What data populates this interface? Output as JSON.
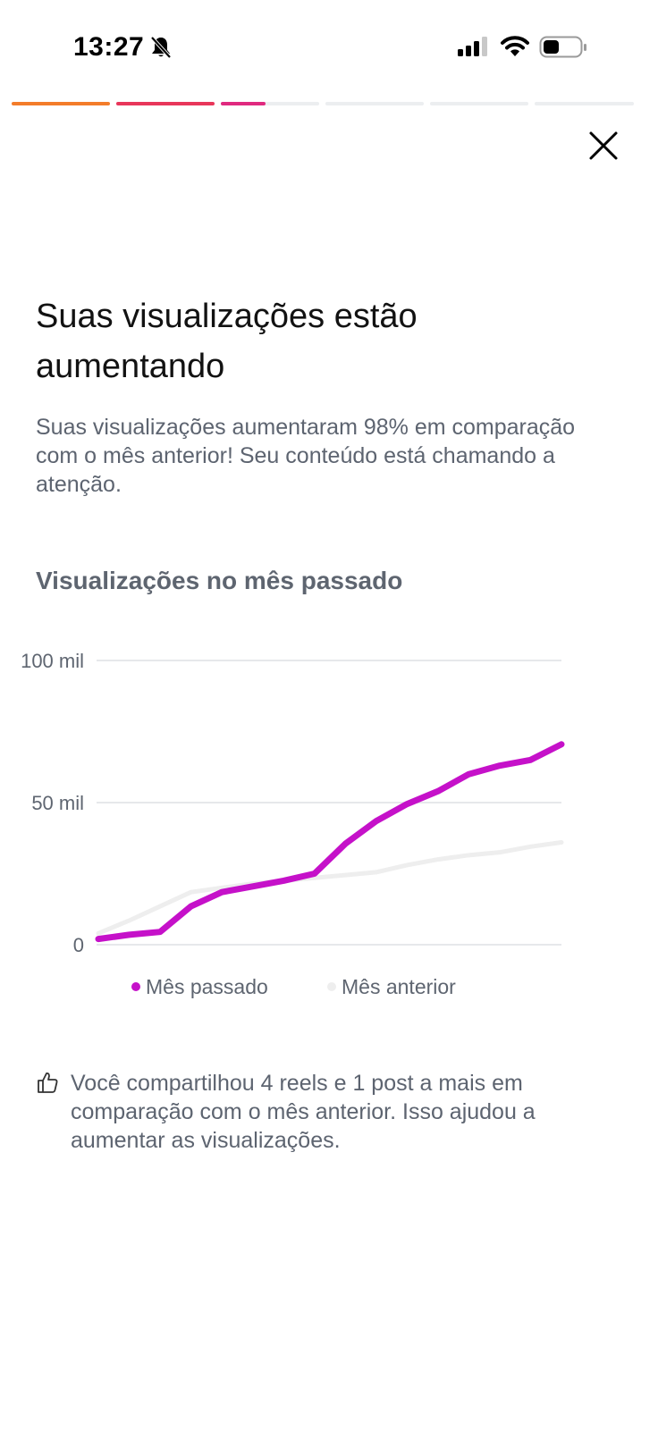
{
  "status_bar": {
    "time": "13:27",
    "icons": [
      "bell-slash-icon",
      "signal-icon",
      "wifi-icon",
      "battery-icon"
    ]
  },
  "story_progress": {
    "segments": [
      {
        "state": "complete",
        "color": "#f37c2a"
      },
      {
        "state": "complete",
        "color": "#e8365a"
      },
      {
        "state": "current",
        "fill_fraction": 0.45,
        "color": "#e0297f"
      },
      {
        "state": "upcoming"
      },
      {
        "state": "upcoming"
      },
      {
        "state": "upcoming"
      }
    ]
  },
  "close_icon": "close-icon",
  "title": "Suas visualizações estão aumentando",
  "subtitle": "Suas visualizações aumentaram 98% em comparação com o mês anterior! Seu conteúdo está chamando a atenção.",
  "chart_title": "Visualizações no mês passado",
  "chart_data": {
    "type": "line",
    "title": "Visualizações no mês passado",
    "ylim": [
      0,
      100000
    ],
    "y_ticks": [
      {
        "value": 0,
        "label": "0"
      },
      {
        "value": 50000,
        "label": "50 mil"
      },
      {
        "value": 100000,
        "label": "100 mil"
      }
    ],
    "grid": true,
    "x": [
      1,
      2,
      3,
      4,
      5,
      6,
      7,
      8,
      9,
      10,
      11,
      12,
      13,
      14,
      15,
      16
    ],
    "series": [
      {
        "name": "Mês passado",
        "color": "#c511c9",
        "values": [
          2000,
          3500,
          4500,
          13500,
          18500,
          20500,
          22500,
          25000,
          35500,
          43500,
          49500,
          54000,
          60000,
          63000,
          65000,
          70500
        ]
      },
      {
        "name": "Mês anterior",
        "color": "#eeeeee",
        "values": [
          4000,
          8500,
          13500,
          18500,
          20000,
          21500,
          22500,
          23500,
          24500,
          25500,
          28000,
          30000,
          31500,
          32500,
          34500,
          36000
        ]
      }
    ],
    "legend_position": "bottom"
  },
  "tip": {
    "icon": "thumbs-up-icon",
    "text": "Você compartilhou 4 reels e 1 post a mais em comparação com o mês anterior. Isso ajudou a aumentar as visualizações."
  }
}
